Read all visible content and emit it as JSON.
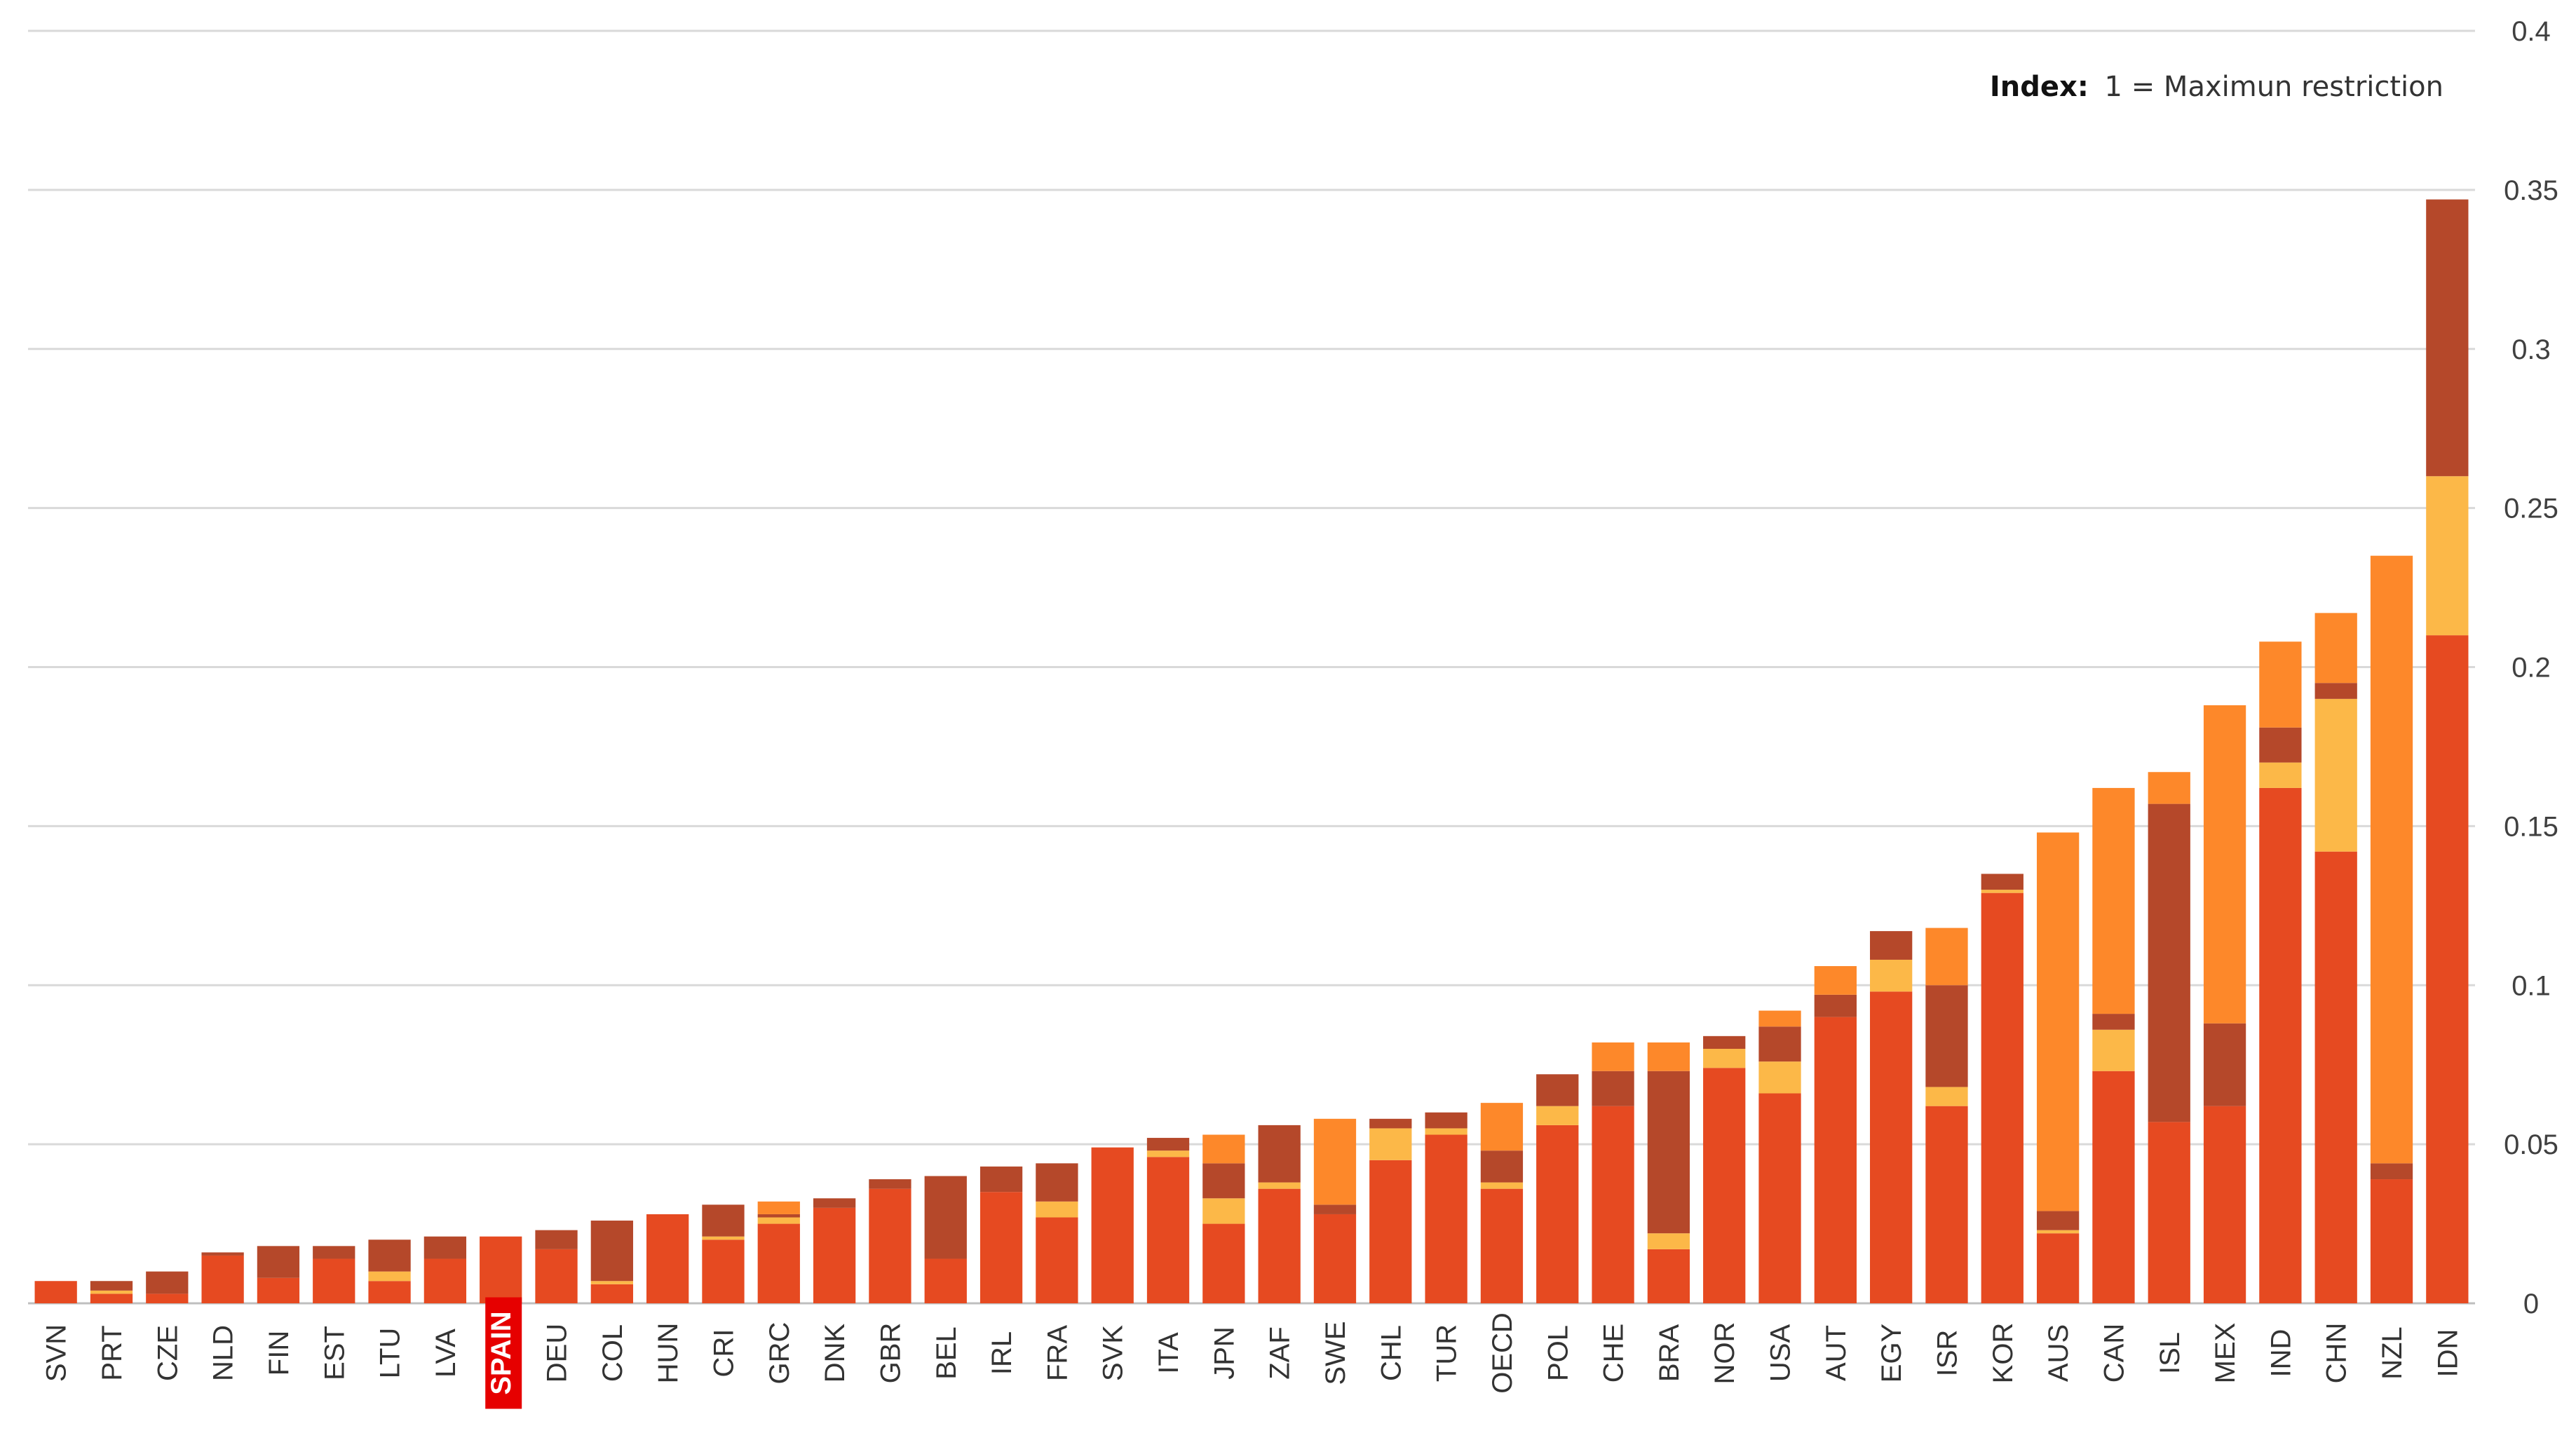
{
  "chart_data": {
    "type": "bar",
    "stacked": true,
    "note": {
      "label": "Index:",
      "text": "1 = Maximun restriction"
    },
    "highlight": "SPAIN",
    "categories": [
      "SVN",
      "PRT",
      "CZE",
      "NLD",
      "FIN",
      "EST",
      "LTU",
      "LVA",
      "SPAIN",
      "DEU",
      "COL",
      "HUN",
      "CRI",
      "GRC",
      "DNK",
      "GBR",
      "BEL",
      "IRL",
      "FRA",
      "SVK",
      "ITA",
      "JPN",
      "ZAF",
      "SWE",
      "CHL",
      "TUR",
      "OECD",
      "POL",
      "CHE",
      "BRA",
      "NOR",
      "USA",
      "AUT",
      "EGY",
      "ISR",
      "KOR",
      "AUS",
      "CAN",
      "ISL",
      "MEX",
      "IND",
      "CHN",
      "NZL",
      "IDN"
    ],
    "series": [
      {
        "color": "#e64a21",
        "values": [
          0.007,
          0.003,
          0.003,
          0.015,
          0.008,
          0.014,
          0.007,
          0.014,
          0.021,
          0.017,
          0.006,
          0.028,
          0.02,
          0.025,
          0.03,
          0.036,
          0.014,
          0.035,
          0.027,
          0.049,
          0.046,
          0.025,
          0.036,
          0.028,
          0.045,
          0.053,
          0.036,
          0.056,
          0.062,
          0.017,
          0.074,
          0.066,
          0.09,
          0.098,
          0.062,
          0.129,
          0.022,
          0.073,
          0.057,
          0.062,
          0.162,
          0.142,
          0.039,
          0.21
        ]
      },
      {
        "color": "#fcb848",
        "values": [
          0,
          0.001,
          0,
          0,
          0,
          0,
          0.003,
          0,
          0,
          0,
          0.001,
          0,
          0.001,
          0.002,
          0,
          0,
          0,
          0,
          0.005,
          0,
          0.002,
          0.008,
          0.002,
          0,
          0.01,
          0.002,
          0.002,
          0.006,
          0,
          0.005,
          0.006,
          0.01,
          0,
          0.01,
          0.006,
          0.001,
          0.001,
          0.013,
          0,
          0,
          0.008,
          0.048,
          0,
          0.05
        ]
      },
      {
        "color": "#b5482a",
        "values": [
          0,
          0.003,
          0.007,
          0.001,
          0.01,
          0.004,
          0.01,
          0.007,
          0,
          0.006,
          0.019,
          0,
          0.01,
          0.001,
          0.003,
          0.003,
          0.026,
          0.008,
          0.012,
          0,
          0.004,
          0.011,
          0.018,
          0.003,
          0.003,
          0.005,
          0.01,
          0.01,
          0.011,
          0.051,
          0.004,
          0.011,
          0.007,
          0.009,
          0.032,
          0.005,
          0.006,
          0.005,
          0.1,
          0.026,
          0.011,
          0.005,
          0.005,
          0.087
        ]
      },
      {
        "color": "#fd882a",
        "values": [
          0,
          0,
          0,
          0,
          0,
          0,
          0,
          0,
          0,
          0,
          0,
          0,
          0,
          0.004,
          0,
          0,
          0,
          0,
          0,
          0,
          0,
          0.009,
          0,
          0.027,
          0,
          0,
          0.015,
          0,
          0.009,
          0.009,
          0,
          0.005,
          0.009,
          0,
          0.018,
          0,
          0.119,
          0.071,
          0.01,
          0.1,
          0.027,
          0.022,
          0.191,
          0
        ]
      }
    ],
    "yticks": [
      "0",
      "0.05",
      "0.1",
      "0.15",
      "0.2",
      "0.25",
      "0.3",
      "0.35",
      "0.4"
    ],
    "ylim": [
      0,
      0.4
    ],
    "grid": true,
    "y_axis_side": "right",
    "legend": "none"
  }
}
